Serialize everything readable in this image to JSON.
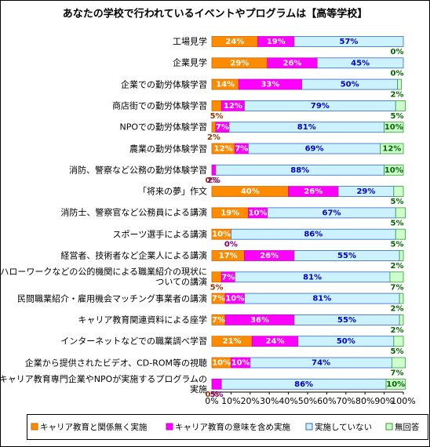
{
  "chart_data": {
    "type": "stacked-barh",
    "title": "あなたの学校で行われているイベントやプログラムは【高等学校】",
    "categories": [
      "工場見学",
      "企業見学",
      "企業での勤労体験学習",
      "商店街での勤労体験学習",
      "NPOでの勤労体験学習",
      "農業の勤労体験学習",
      "消防、警察など公務の勤労体験学習",
      "「将来の夢」作文",
      "消防士、警察官など公務員による講演",
      "スポーツ選手による講演",
      "経営者、技術者など企業人による講演",
      "ハローワークなどの公的機関による職業紹介の現状についての講演",
      "民間職業紹介・雇用機会マッチング事業者の講演",
      "キャリア教育関連資料による座学",
      "インターネットなどでの職業調べ学習",
      "企業から提供されたビデオ、CD-ROM等の視聴",
      "キャリア教育専門企業やNPOが実施するプログラムの実施"
    ],
    "series": [
      {
        "name": "キャリア教育と関係無く実施",
        "color": "#ff8c00",
        "values": [
          24,
          29,
          14,
          5,
          2,
          12,
          0,
          40,
          19,
          10,
          17,
          5,
          7,
          7,
          21,
          10,
          0
        ],
        "value_labels": [
          "24%",
          "29%",
          "14%",
          "5%",
          "2%",
          "12%",
          "0%",
          "40%",
          "19%",
          "10%",
          "17%",
          "5%",
          "7%",
          "7%",
          "21%",
          "10%",
          "0%"
        ]
      },
      {
        "name": "キャリア教育の意味を含め実施",
        "color": "#ff00ff",
        "values": [
          19,
          26,
          33,
          12,
          7,
          7,
          2,
          26,
          10,
          0,
          26,
          7,
          10,
          36,
          24,
          10,
          5
        ],
        "value_labels": [
          "19%",
          "26%",
          "33%",
          "12%",
          "7%",
          "7%",
          "2%",
          "26%",
          "10%",
          "0%",
          "26%",
          "7%",
          "10%",
          "36%",
          "24%",
          "10%",
          "5%"
        ]
      },
      {
        "name": "実施していない",
        "color": "#ccf2ff",
        "values": [
          57,
          45,
          50,
          79,
          81,
          69,
          88,
          29,
          67,
          86,
          55,
          81,
          81,
          55,
          50,
          74,
          86
        ],
        "value_labels": [
          "57%",
          "45%",
          "50%",
          "79%",
          "81%",
          "69%",
          "88%",
          "29%",
          "67%",
          "86%",
          "55%",
          "81%",
          "81%",
          "55%",
          "50%",
          "74%",
          "86%"
        ]
      },
      {
        "name": "無回答",
        "color": "#ccffcc",
        "values": [
          0,
          0,
          2,
          5,
          10,
          12,
          10,
          5,
          5,
          5,
          2,
          7,
          2,
          2,
          5,
          7,
          10
        ],
        "value_labels": [
          "0%",
          "0%",
          "2%",
          "5%",
          "10%",
          "12%",
          "10%",
          "5%",
          "5%",
          "5%",
          "2%",
          "7%",
          "2%",
          "2%",
          "5%",
          "7%",
          "10%"
        ]
      }
    ],
    "xlim": [
      0,
      100
    ],
    "xticks": [
      {
        "value": 0,
        "label": "0%"
      },
      {
        "value": 10,
        "label": "10%"
      },
      {
        "value": 20,
        "label": "20%"
      },
      {
        "value": 30,
        "label": "30%"
      },
      {
        "value": 40,
        "label": "40%"
      },
      {
        "value": 50,
        "label": "50%"
      },
      {
        "value": 60,
        "label": "60%"
      },
      {
        "value": 70,
        "label": "70%"
      },
      {
        "value": 80,
        "label": "80%"
      },
      {
        "value": 90,
        "label": "90%"
      },
      {
        "value": 100,
        "label": "100%"
      }
    ],
    "legend": "bottom"
  }
}
